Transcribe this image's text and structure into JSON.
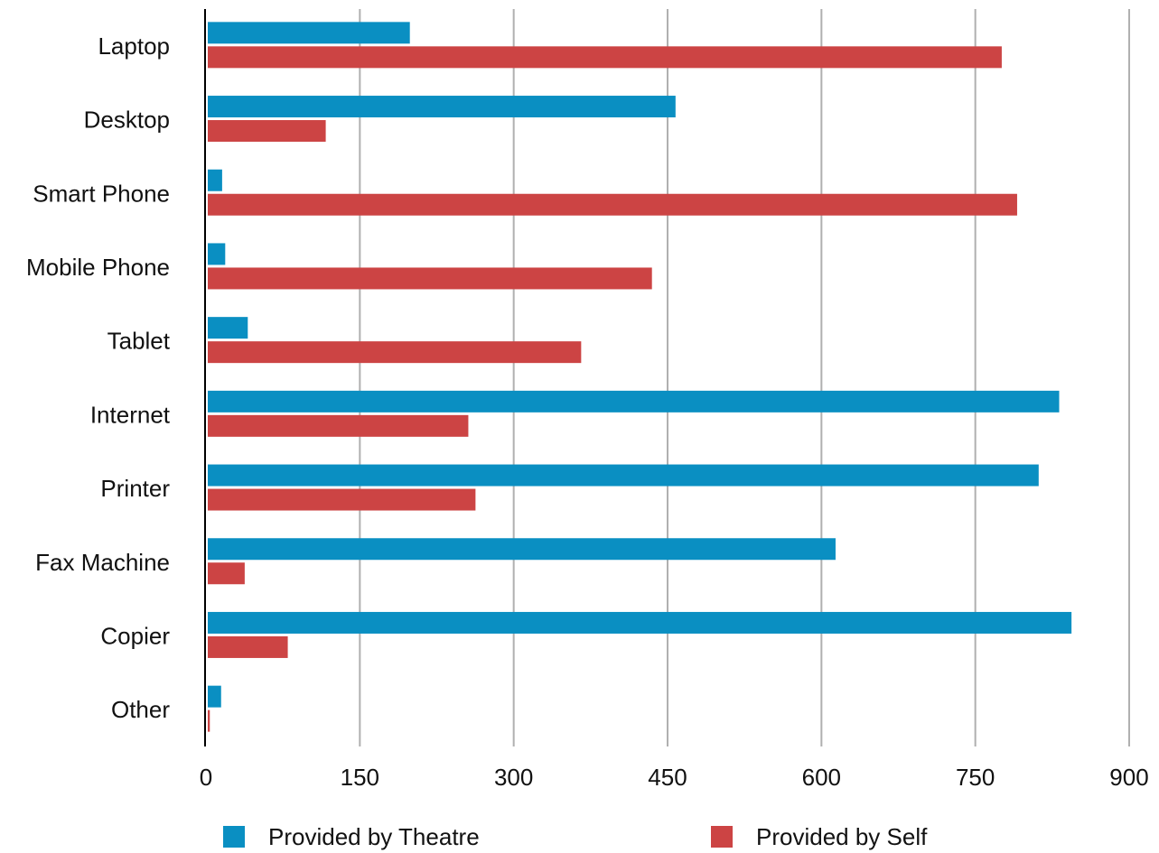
{
  "chart_data": {
    "type": "bar",
    "orientation": "horizontal",
    "title": "",
    "xlabel": "",
    "ylabel": "",
    "xlim": [
      0,
      900
    ],
    "xticks": [
      0,
      150,
      300,
      450,
      600,
      750,
      900
    ],
    "grid": "vertical",
    "legend_position": "bottom",
    "categories": [
      "Laptop",
      "Desktop",
      "Smart Phone",
      "Mobile Phone",
      "Tablet",
      "Internet",
      "Printer",
      "Fax Machine",
      "Copier",
      "Other"
    ],
    "series": [
      {
        "name": "Provided by Theatre",
        "color": "#0a8fc2",
        "values": [
          197,
          456,
          14,
          17,
          39,
          830,
          810,
          612,
          842,
          13
        ]
      },
      {
        "name": "Provided by Self",
        "color": "#cc4444",
        "values": [
          774,
          115,
          789,
          433,
          364,
          254,
          261,
          36,
          78,
          2
        ]
      }
    ]
  }
}
